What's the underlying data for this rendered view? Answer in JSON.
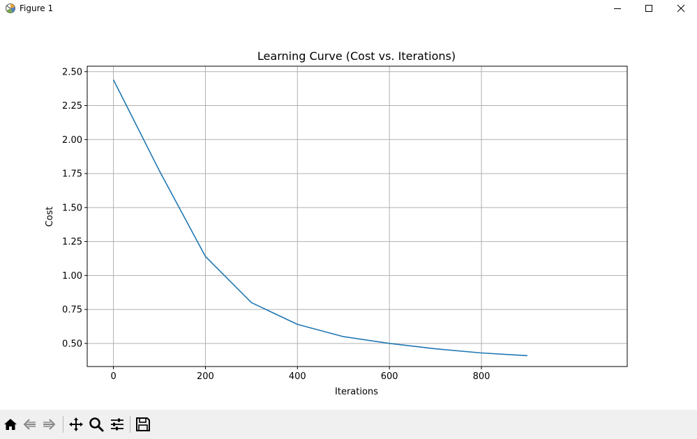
{
  "window": {
    "title": "Figure 1",
    "app_icon": "matplotlib-figure-icon",
    "controls": [
      "minimize-icon",
      "maximize-icon",
      "close-icon"
    ]
  },
  "chart_data": {
    "type": "line",
    "title": "Learning Curve (Cost vs. Iterations)",
    "xlabel": "Iterations",
    "ylabel": "Cost",
    "xlim": [
      -57,
      1117
    ],
    "ylim": [
      0.33,
      2.54
    ],
    "xticks": [
      0,
      200,
      400,
      600,
      800
    ],
    "xtick_labels": [
      "0",
      "200",
      "400",
      "600",
      "800"
    ],
    "yticks": [
      0.5,
      0.75,
      1.0,
      1.25,
      1.5,
      1.75,
      2.0,
      2.25,
      2.5
    ],
    "ytick_labels": [
      "0.50",
      "0.75",
      "1.00",
      "1.25",
      "1.50",
      "1.75",
      "2.00",
      "2.25",
      "2.50"
    ],
    "grid": true,
    "line_color": "#1f77b4",
    "series": [
      {
        "x": [
          0,
          100,
          200,
          300,
          400,
          500,
          600,
          700,
          800,
          900
        ],
        "values": [
          2.44,
          1.77,
          1.14,
          0.8,
          0.64,
          0.55,
          0.5,
          0.46,
          0.43,
          0.41
        ]
      }
    ]
  },
  "toolbar": {
    "buttons": [
      "home-icon",
      "back-icon",
      "forward-icon",
      "pan-icon",
      "zoom-icon",
      "configure-subplots-icon",
      "save-icon"
    ]
  }
}
